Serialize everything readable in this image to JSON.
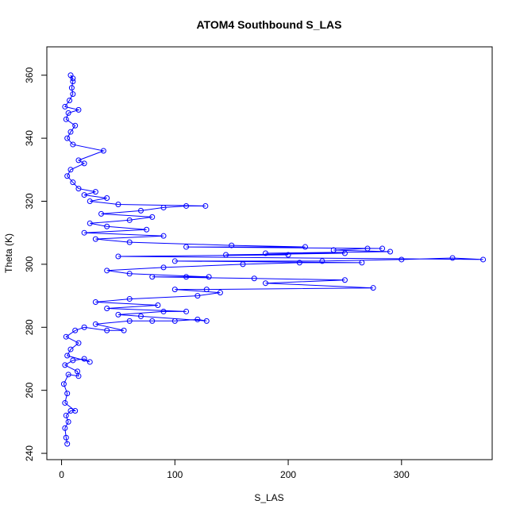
{
  "chart_data": {
    "type": "scatter",
    "title": "ATOM4 Southbound S_LAS",
    "xlabel": "S_LAS",
    "ylabel": "Theta (K)",
    "xlim": [
      -13,
      380
    ],
    "ylim": [
      238,
      369
    ],
    "xticks": [
      0,
      100,
      200,
      300
    ],
    "yticks": [
      240,
      260,
      280,
      300,
      320,
      340,
      360
    ],
    "grid": false,
    "legend": "none",
    "marker": "open-circle",
    "connected": true,
    "color": "#0000ff",
    "series": [
      {
        "points": [
          [
            5,
            243
          ],
          [
            4,
            245
          ],
          [
            3,
            248
          ],
          [
            6,
            250
          ],
          [
            4,
            252
          ],
          [
            8,
            253.5
          ],
          [
            12,
            253.5
          ],
          [
            3,
            256
          ],
          [
            5,
            259
          ],
          [
            2,
            262
          ],
          [
            6,
            265
          ],
          [
            15,
            264.5
          ],
          [
            14,
            266
          ],
          [
            3,
            268
          ],
          [
            10,
            269.5
          ],
          [
            20,
            270
          ],
          [
            25,
            269
          ],
          [
            5,
            271
          ],
          [
            8,
            273
          ],
          [
            15,
            275
          ],
          [
            4,
            277
          ],
          [
            12,
            279
          ],
          [
            20,
            280
          ],
          [
            40,
            279
          ],
          [
            55,
            279
          ],
          [
            30,
            281
          ],
          [
            60,
            282
          ],
          [
            80,
            282
          ],
          [
            100,
            282
          ],
          [
            120,
            282.5
          ],
          [
            128,
            282
          ],
          [
            70,
            283.5
          ],
          [
            50,
            284
          ],
          [
            90,
            285
          ],
          [
            110,
            285
          ],
          [
            40,
            286
          ],
          [
            85,
            287
          ],
          [
            30,
            288
          ],
          [
            60,
            289
          ],
          [
            120,
            290
          ],
          [
            140,
            291
          ],
          [
            100,
            292
          ],
          [
            128,
            292
          ],
          [
            275,
            292.5
          ],
          [
            180,
            294
          ],
          [
            250,
            295
          ],
          [
            170,
            295.5
          ],
          [
            80,
            296
          ],
          [
            110,
            296
          ],
          [
            130,
            296
          ],
          [
            60,
            297
          ],
          [
            40,
            298
          ],
          [
            90,
            299
          ],
          [
            160,
            300
          ],
          [
            210,
            300.5
          ],
          [
            265,
            300.5
          ],
          [
            100,
            301
          ],
          [
            230,
            301
          ],
          [
            300,
            301.5
          ],
          [
            345,
            302
          ],
          [
            372,
            301.5
          ],
          [
            50,
            302.5
          ],
          [
            200,
            303
          ],
          [
            145,
            303
          ],
          [
            250,
            303.5
          ],
          [
            180,
            303.5
          ],
          [
            290,
            304
          ],
          [
            240,
            304.5
          ],
          [
            270,
            305
          ],
          [
            283,
            305
          ],
          [
            110,
            305.5
          ],
          [
            215,
            305.5
          ],
          [
            150,
            306
          ],
          [
            60,
            307
          ],
          [
            30,
            308
          ],
          [
            90,
            309
          ],
          [
            20,
            310
          ],
          [
            75,
            311
          ],
          [
            40,
            312
          ],
          [
            25,
            313
          ],
          [
            60,
            314
          ],
          [
            80,
            315
          ],
          [
            35,
            316
          ],
          [
            70,
            317
          ],
          [
            90,
            318
          ],
          [
            110,
            318.5
          ],
          [
            127,
            318.5
          ],
          [
            50,
            319
          ],
          [
            25,
            320
          ],
          [
            40,
            321
          ],
          [
            20,
            322
          ],
          [
            30,
            323
          ],
          [
            15,
            324
          ],
          [
            10,
            326
          ],
          [
            5,
            328
          ],
          [
            8,
            330
          ],
          [
            20,
            332
          ],
          [
            15,
            333
          ],
          [
            37,
            336
          ],
          [
            10,
            338
          ],
          [
            5,
            340
          ],
          [
            8,
            342
          ],
          [
            12,
            344
          ],
          [
            4,
            346
          ],
          [
            6,
            348
          ],
          [
            15,
            349
          ],
          [
            3,
            350
          ],
          [
            7,
            352
          ],
          [
            10,
            354
          ],
          [
            9,
            356
          ],
          [
            10,
            358
          ],
          [
            8,
            360
          ],
          [
            10,
            359
          ]
        ]
      }
    ]
  }
}
